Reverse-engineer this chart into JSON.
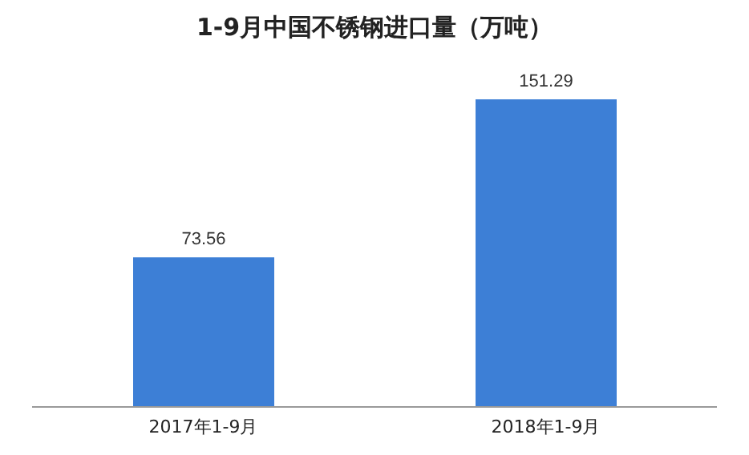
{
  "chart_data": {
    "type": "bar",
    "title": "1-9月中国不锈钢进口量（万吨）",
    "categories": [
      "2017年1-9月",
      "2018年1-9月"
    ],
    "values": [
      73.56,
      151.29
    ],
    "color": "#3d7fd6",
    "data_labels": true
  }
}
